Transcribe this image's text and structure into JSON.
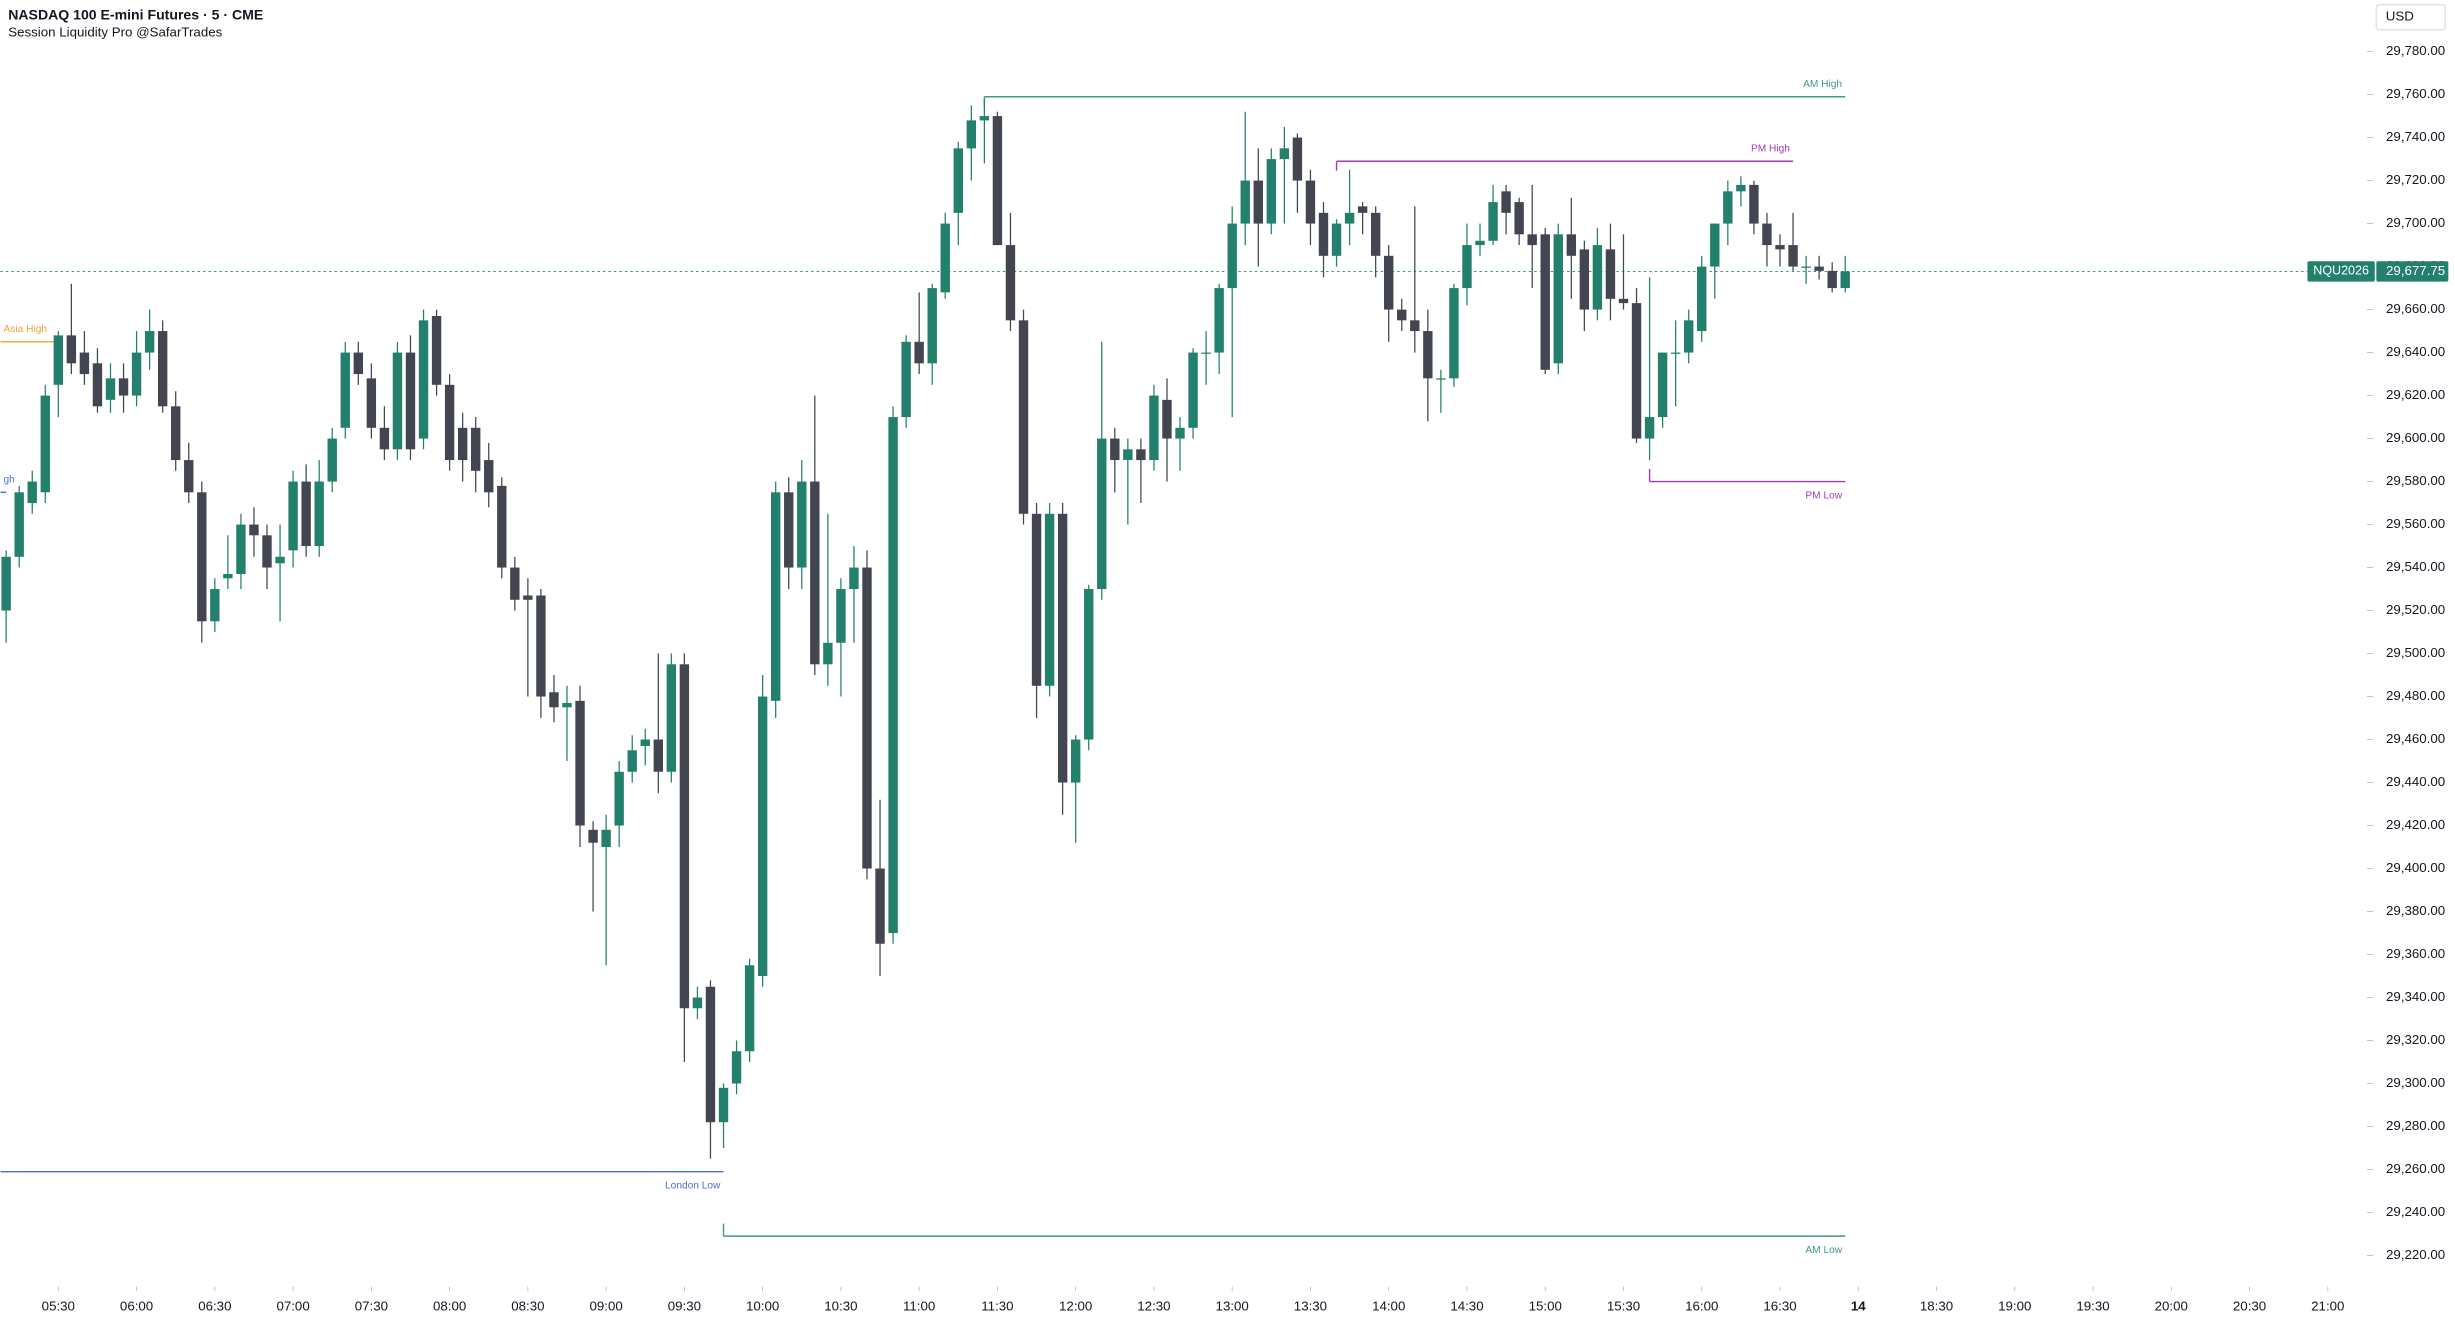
{
  "chart_data": {
    "type": "candlestick",
    "title": "NASDAQ 100 E-mini Futures · 5 · CME",
    "subtitle": "Session Liquidity Pro @SafarTrades",
    "currency": "USD",
    "symbol": "NQU2026",
    "last_price": {
      "value": 29677.75,
      "label": "29,677.75"
    },
    "up_color": "#22806c",
    "down_color": "#434651",
    "ylim": [
      29207,
      29804
    ],
    "yticks": [
      {
        "value": 29220,
        "label": "29,220.00"
      },
      {
        "value": 29240,
        "label": "29,240.00"
      },
      {
        "value": 29260,
        "label": "29,260.00"
      },
      {
        "value": 29280,
        "label": "29,280.00"
      },
      {
        "value": 29300,
        "label": "29,300.00"
      },
      {
        "value": 29320,
        "label": "29,320.00"
      },
      {
        "value": 29340,
        "label": "29,340.00"
      },
      {
        "value": 29360,
        "label": "29,360.00"
      },
      {
        "value": 29380,
        "label": "29,380.00"
      },
      {
        "value": 29400,
        "label": "29,400.00"
      },
      {
        "value": 29420,
        "label": "29,420.00"
      },
      {
        "value": 29440,
        "label": "29,440.00"
      },
      {
        "value": 29460,
        "label": "29,460.00"
      },
      {
        "value": 29480,
        "label": "29,480.00"
      },
      {
        "value": 29500,
        "label": "29,500.00"
      },
      {
        "value": 29520,
        "label": "29,520.00"
      },
      {
        "value": 29540,
        "label": "29,540.00"
      },
      {
        "value": 29560,
        "label": "29,560.00"
      },
      {
        "value": 29580,
        "label": "29,580.00"
      },
      {
        "value": 29600,
        "label": "29,600.00"
      },
      {
        "value": 29620,
        "label": "29,620.00"
      },
      {
        "value": 29640,
        "label": "29,640.00"
      },
      {
        "value": 29660,
        "label": "29,660.00"
      },
      {
        "value": 29680,
        "label": "29,680.00"
      },
      {
        "value": 29700,
        "label": "29,700.00"
      },
      {
        "value": 29720,
        "label": "29,720.00"
      },
      {
        "value": 29740,
        "label": "29,740.00"
      },
      {
        "value": 29760,
        "label": "29,760.00"
      },
      {
        "value": 29780,
        "label": "29,780.00"
      }
    ],
    "xticks": [
      {
        "value": 330,
        "label": "05:30"
      },
      {
        "value": 360,
        "label": "06:00"
      },
      {
        "value": 390,
        "label": "06:30"
      },
      {
        "value": 420,
        "label": "07:00"
      },
      {
        "value": 450,
        "label": "07:30"
      },
      {
        "value": 480,
        "label": "08:00"
      },
      {
        "value": 510,
        "label": "08:30"
      },
      {
        "value": 540,
        "label": "09:00"
      },
      {
        "value": 570,
        "label": "09:30"
      },
      {
        "value": 600,
        "label": "10:00"
      },
      {
        "value": 630,
        "label": "10:30"
      },
      {
        "value": 660,
        "label": "11:00"
      },
      {
        "value": 690,
        "label": "11:30"
      },
      {
        "value": 720,
        "label": "12:00"
      },
      {
        "value": 750,
        "label": "12:30"
      },
      {
        "value": 780,
        "label": "13:00"
      },
      {
        "value": 810,
        "label": "13:30"
      },
      {
        "value": 840,
        "label": "14:00"
      },
      {
        "value": 870,
        "label": "14:30"
      },
      {
        "value": 900,
        "label": "15:00"
      },
      {
        "value": 930,
        "label": "15:30"
      },
      {
        "value": 960,
        "label": "16:00"
      },
      {
        "value": 990,
        "label": "16:30"
      },
      {
        "value": 1020,
        "label": "14"
      },
      {
        "value": 1110,
        "label": "18:30"
      },
      {
        "value": 1140,
        "label": "19:00"
      },
      {
        "value": 1170,
        "label": "19:30"
      },
      {
        "value": 1200,
        "label": "20:00"
      },
      {
        "value": 1230,
        "label": "20:30"
      },
      {
        "value": 1260,
        "label": "21:00"
      }
    ],
    "x": [
      310,
      315,
      320,
      325,
      330,
      335,
      340,
      345,
      350,
      355,
      360,
      365,
      370,
      375,
      380,
      385,
      390,
      395,
      400,
      405,
      410,
      415,
      420,
      425,
      430,
      435,
      440,
      445,
      450,
      455,
      460,
      465,
      470,
      475,
      480,
      485,
      490,
      495,
      500,
      505,
      510,
      515,
      520,
      525,
      530,
      535,
      540,
      545,
      550,
      555,
      560,
      565,
      570,
      575,
      580,
      585,
      590,
      595,
      600,
      605,
      610,
      615,
      620,
      625,
      630,
      635,
      640,
      645,
      650,
      655,
      660,
      665,
      670,
      675,
      680,
      685,
      690,
      695,
      700,
      705,
      710,
      715,
      720,
      725,
      730,
      735,
      740,
      745,
      750,
      755,
      760,
      765,
      770,
      775,
      780,
      785,
      790,
      795,
      800,
      805,
      810,
      815,
      820,
      825,
      830,
      835,
      840,
      845,
      850,
      855,
      860,
      865,
      870,
      875,
      880,
      885,
      890,
      895,
      900,
      905,
      910,
      915,
      920,
      925,
      930,
      935,
      940,
      945,
      950,
      955,
      960,
      965,
      970,
      975,
      980,
      985,
      990,
      995,
      1000,
      1005,
      1010,
      1015
    ],
    "open": [
      29520,
      29545,
      29570,
      29575,
      29625,
      29648,
      29640,
      29635,
      29618,
      29628,
      29620,
      29640,
      29650,
      29615,
      29590,
      29575,
      29515,
      29535,
      29537,
      29560,
      29555,
      29542,
      29548,
      29580,
      29550,
      29580,
      29605,
      29640,
      29628,
      29605,
      29595,
      29640,
      29600,
      29657,
      29625,
      29605,
      29605,
      29590,
      29578,
      29540,
      29527,
      29527,
      29482,
      29475,
      29478,
      29418,
      29410,
      29420,
      29445,
      29457,
      29460,
      29445,
      29495,
      29335,
      29345,
      29282,
      29300,
      29315,
      29350,
      29478,
      29575,
      29540,
      29580,
      29495,
      29505,
      29530,
      29540,
      29400,
      29370,
      29610,
      29645,
      29635,
      29668,
      29705,
      29735,
      29748,
      29750,
      29690,
      29655,
      29565,
      29485,
      29565,
      29440,
      29460,
      29530,
      29600,
      29590,
      29595,
      29590,
      29618,
      29600,
      29605,
      29640,
      29640,
      29670,
      29700,
      29720,
      29700,
      29730,
      29740,
      29720,
      29705,
      29685,
      29700,
      29708,
      29705,
      29685,
      29660,
      29655,
      29650,
      29628,
      29628,
      29670,
      29690,
      29692,
      29715,
      29710,
      29695,
      29695,
      29635,
      29695,
      29688,
      29660,
      29688,
      29665,
      29663,
      29600,
      29610,
      29640,
      29640,
      29650,
      29680,
      29700,
      29715,
      29718,
      29700,
      29690,
      29690,
      29680,
      29680,
      29678,
      29670
    ],
    "high": [
      29548,
      29578,
      29585,
      29625,
      29650,
      29672,
      29650,
      29642,
      29635,
      29635,
      29650,
      29660,
      29655,
      29622,
      29598,
      29580,
      29535,
      29555,
      29565,
      29568,
      29560,
      29560,
      29585,
      29588,
      29590,
      29605,
      29645,
      29645,
      29635,
      29615,
      29645,
      29648,
      29660,
      29660,
      29630,
      29612,
      29610,
      29598,
      29582,
      29545,
      29535,
      29530,
      29490,
      29485,
      29485,
      29422,
      29425,
      29450,
      29462,
      29465,
      29500,
      29500,
      29500,
      29345,
      29348,
      29300,
      29320,
      29358,
      29490,
      29580,
      29582,
      29590,
      29620,
      29565,
      29535,
      29550,
      29548,
      29432,
      29615,
      29648,
      29668,
      29672,
      29705,
      29738,
      29755,
      29758,
      29752,
      29705,
      29660,
      29570,
      29570,
      29570,
      29462,
      29532,
      29645,
      29605,
      29600,
      29600,
      29625,
      29628,
      29610,
      29642,
      29650,
      29672,
      29708,
      29752,
      29735,
      29735,
      29745,
      29742,
      29725,
      29710,
      29702,
      29725,
      29710,
      29708,
      29690,
      29665,
      29708,
      29660,
      29632,
      29672,
      29700,
      29700,
      29718,
      29718,
      29712,
      29718,
      29698,
      29700,
      29712,
      29692,
      29698,
      29700,
      29695,
      29670,
      29675,
      29640,
      29655,
      29660,
      29685,
      29700,
      29720,
      29722,
      29720,
      29705,
      29695,
      29705,
      29685,
      29685,
      29682,
      29685
    ],
    "low": [
      29505,
      29540,
      29565,
      29570,
      29610,
      29630,
      29625,
      29612,
      29612,
      29612,
      29615,
      29632,
      29612,
      29585,
      29570,
      29505,
      29510,
      29530,
      29530,
      29545,
      29530,
      29515,
      29540,
      29545,
      29545,
      29575,
      29600,
      29625,
      29600,
      29590,
      29590,
      29590,
      29595,
      29620,
      29585,
      29580,
      29575,
      29568,
      29535,
      29520,
      29480,
      29470,
      29468,
      29450,
      29410,
      29380,
      29355,
      29410,
      29440,
      29448,
      29435,
      29440,
      29310,
      29330,
      29265,
      29270,
      29295,
      29310,
      29345,
      29470,
      29530,
      29530,
      29490,
      29485,
      29480,
      29505,
      29395,
      29350,
      29365,
      29605,
      29630,
      29625,
      29665,
      29690,
      29720,
      29728,
      29690,
      29650,
      29560,
      29470,
      29480,
      29425,
      29412,
      29455,
      29525,
      29575,
      29560,
      29570,
      29585,
      29580,
      29585,
      29600,
      29625,
      29630,
      29610,
      29690,
      29680,
      29695,
      29700,
      29705,
      29690,
      29675,
      29680,
      29690,
      29695,
      29675,
      29645,
      29650,
      29640,
      29608,
      29612,
      29624,
      29662,
      29685,
      29690,
      29695,
      29690,
      29670,
      29630,
      29630,
      29665,
      29650,
      29655,
      29655,
      29660,
      29598,
      29590,
      29605,
      29615,
      29635,
      29645,
      29665,
      29690,
      29708,
      29695,
      29680,
      29680,
      29678,
      29672,
      29674,
      29668,
      29668
    ],
    "close": [
      29545,
      29575,
      29580,
      29620,
      29648,
      29635,
      29630,
      29615,
      29628,
      29620,
      29640,
      29650,
      29615,
      29590,
      29575,
      29515,
      29530,
      29537,
      29560,
      29555,
      29540,
      29545,
      29580,
      29550,
      29580,
      29600,
      29640,
      29630,
      29605,
      29595,
      29640,
      29595,
      29655,
      29625,
      29590,
      29590,
      29585,
      29575,
      29540,
      29525,
      29525,
      29480,
      29475,
      29477,
      29420,
      29412,
      29418,
      29445,
      29455,
      29460,
      29445,
      29495,
      29335,
      29340,
      29282,
      29298,
      29315,
      29355,
      29480,
      29575,
      29540,
      29580,
      29495,
      29505,
      29530,
      29540,
      29400,
      29365,
      29610,
      29645,
      29635,
      29670,
      29700,
      29735,
      29748,
      29750,
      29690,
      29655,
      29565,
      29485,
      29565,
      29440,
      29460,
      29530,
      29600,
      29590,
      29595,
      29590,
      29620,
      29600,
      29605,
      29640,
      29640,
      29670,
      29700,
      29720,
      29700,
      29730,
      29735,
      29720,
      29700,
      29685,
      29700,
      29705,
      29705,
      29685,
      29660,
      29655,
      29650,
      29628,
      29628,
      29670,
      29690,
      29692,
      29710,
      29705,
      29695,
      29690,
      29632,
      29695,
      29685,
      29660,
      29690,
      29665,
      29663,
      29600,
      29610,
      29640,
      29640,
      29655,
      29680,
      29700,
      29715,
      29718,
      29700,
      29690,
      29688,
      29680,
      29680,
      29678,
      29670,
      29677.75
    ],
    "levels": [
      {
        "name": "AM High",
        "value": 29759,
        "start": 685,
        "end": 1015,
        "color": "#3d9a8b",
        "label_side": "above",
        "label_align": "end"
      },
      {
        "name": "PM High",
        "value": 29729,
        "start": 820,
        "end": 995,
        "color": "#a23bb8",
        "label_side": "above",
        "label_align": "end"
      },
      {
        "name": "Asia High",
        "value": 29645,
        "start": null,
        "end": 330,
        "color": "#f5a13a",
        "label_side": "above",
        "label_align": "start"
      },
      {
        "name": "gh",
        "value": 29575,
        "start": null,
        "end": 310,
        "color": "#4a6fd6",
        "label_side": "above",
        "label_align": "start"
      },
      {
        "name": "PM Low",
        "value": 29580,
        "start": 940,
        "end": 1015,
        "color": "#a23bb8",
        "label_side": "below",
        "label_align": "end"
      },
      {
        "name": "London Low",
        "value": 29259,
        "start": null,
        "end": 585,
        "color": "#4a6fd6",
        "label_side": "below",
        "label_align": "end"
      },
      {
        "name": "AM Low",
        "value": 29229,
        "start": 585,
        "end": 1015,
        "color": "#3d9a8b",
        "label_side": "below",
        "label_align": "end"
      }
    ]
  }
}
